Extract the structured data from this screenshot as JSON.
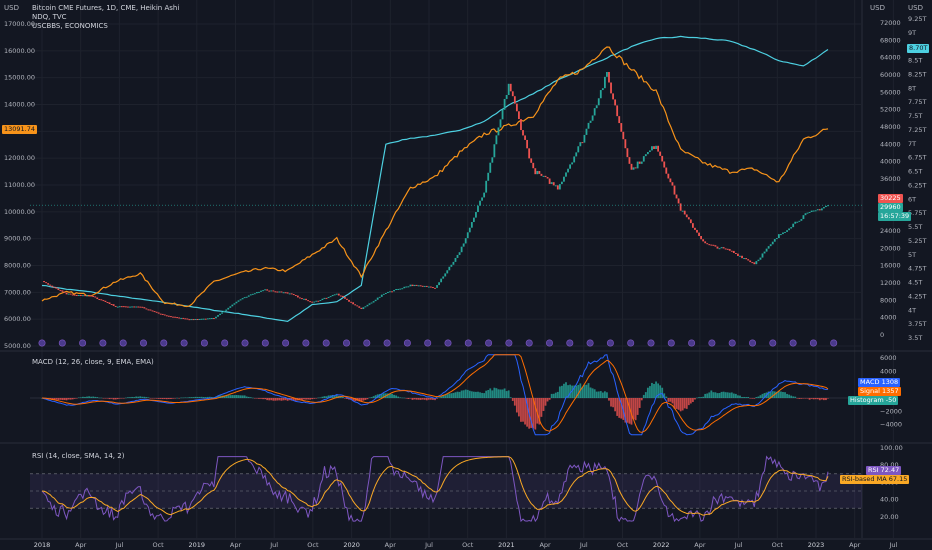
{
  "legend": {
    "main_title": "Bitcoin CME Futures, 1D, CME, Heikin Ashi",
    "series_2": "NDQ, TVC",
    "series_3": "USCBBS, ECONOMICS"
  },
  "colors": {
    "background": "#131722",
    "grid": "#1e222d",
    "btc_up": "#26a69a",
    "btc_down": "#ef5350",
    "ndq": "#f7931a",
    "uscbbs": "#4dd0e1",
    "macd": "#2962ff",
    "signal": "#ff6d00",
    "rsi": "#7e57c2",
    "rsi_ma": "#f9a825",
    "rsi_band": "#7e57c2"
  },
  "axes": {
    "left_unit": "USD",
    "right_unit": "USD",
    "left_ticks": [
      "17000.00",
      "16000.00",
      "15000.00",
      "14000.00",
      "13000.00",
      "12000.00",
      "11000.00",
      "10000.00",
      "9000.00",
      "8000.00",
      "7000.00",
      "6000.00",
      "5000.00"
    ],
    "right_ticks": [
      "72000",
      "68000",
      "64000",
      "60000",
      "56000",
      "52000",
      "48000",
      "44000",
      "40000",
      "36000",
      "32000",
      "28000",
      "24000",
      "20000",
      "16000",
      "12000",
      "8000",
      "4000",
      "0"
    ],
    "far_right_unit": "USD",
    "far_right_ticks": [
      "9.25T",
      "9T",
      "8.75T",
      "8.5T",
      "8.25T",
      "8T",
      "7.75T",
      "7.5T",
      "7.25T",
      "7T",
      "6.75T",
      "6.5T",
      "6.25T",
      "6T",
      "5.75T",
      "5.5T",
      "5.25T",
      "5T",
      "4.75T",
      "4.5T",
      "4.25T",
      "4T",
      "3.75T",
      "3.5T"
    ],
    "time_ticks": [
      "2018",
      "Apr",
      "Jul",
      "Oct",
      "2019",
      "Apr",
      "Jul",
      "Oct",
      "2020",
      "Apr",
      "Jul",
      "Oct",
      "2021",
      "Apr",
      "Jul",
      "Oct",
      "2022",
      "Apr",
      "Jul",
      "Oct",
      "2023",
      "Apr",
      "Jul"
    ]
  },
  "price_tags": {
    "ndq_left": "13091.74",
    "uscbbs": "8.70T",
    "btc_red": "30225",
    "btc_green": "29960",
    "btc_countdown": "16:57:39"
  },
  "macd_panel": {
    "title": "MACD (12, 26, close, 9, EMA, EMA)",
    "ticks": [
      "6000",
      "4000",
      "2000",
      "0",
      "−2000",
      "−4000"
    ],
    "tags": [
      {
        "label": "MACD",
        "value": "1308"
      },
      {
        "label": "Signal",
        "value": "1357"
      },
      {
        "label": "Histogram",
        "value": "-50"
      }
    ]
  },
  "rsi_panel": {
    "title": "RSI (14, close, SMA, 14, 2)",
    "ticks": [
      "100.00",
      "80.00",
      "60.00",
      "40.00",
      "20.00"
    ],
    "tags": [
      {
        "label": "RSI",
        "value": "72.47"
      },
      {
        "label": "RSI-based MA",
        "value": "67.15"
      }
    ],
    "upper_band": 70,
    "lower_band": 30
  },
  "chart_data": {
    "type": "line",
    "title": "Bitcoin CME Futures, 1D, CME, Heikin Ashi",
    "x": [
      "2018-01",
      "2018-03",
      "2018-05",
      "2018-07",
      "2018-09",
      "2018-11",
      "2019-01",
      "2019-03",
      "2019-05",
      "2019-07",
      "2019-09",
      "2019-11",
      "2020-01",
      "2020-03",
      "2020-05",
      "2020-07",
      "2020-09",
      "2020-11",
      "2021-01",
      "2021-03",
      "2021-05",
      "2021-07",
      "2021-09",
      "2021-11",
      "2022-01",
      "2022-03",
      "2022-05",
      "2022-07",
      "2022-09",
      "2022-11",
      "2023-01",
      "2023-03",
      "2023-04"
    ],
    "series": [
      {
        "name": "Bitcoin CME Futures, 1D, CME, Heikin Ashi",
        "axis": "right",
        "values": [
          12500,
          9500,
          9000,
          6600,
          6500,
          4500,
          3600,
          3900,
          8000,
          10500,
          9700,
          7500,
          9500,
          6000,
          9800,
          11500,
          11000,
          19000,
          33000,
          58000,
          38000,
          34000,
          45000,
          60000,
          38000,
          44000,
          29000,
          21000,
          19500,
          16500,
          23000,
          27500,
          29960
        ]
      },
      {
        "name": "NDQ, TVC",
        "axis": "left",
        "values": [
          6700,
          7000,
          6900,
          7400,
          7700,
          6600,
          6500,
          7400,
          7700,
          7900,
          7800,
          8400,
          9000,
          7600,
          9300,
          10900,
          11300,
          12200,
          12900,
          13200,
          13600,
          14900,
          15300,
          16200,
          15300,
          14500,
          12300,
          11800,
          11500,
          11600,
          11100,
          12700,
          13091.74
        ]
      },
      {
        "name": "USCBBS, ECONOMICS",
        "axis": "far_right",
        "values": [
          4.45,
          4.38,
          4.33,
          4.26,
          4.2,
          4.14,
          4.07,
          4.0,
          3.94,
          3.87,
          3.8,
          4.1,
          4.15,
          4.45,
          7.0,
          7.1,
          7.15,
          7.25,
          7.4,
          7.7,
          7.9,
          8.15,
          8.35,
          8.55,
          8.75,
          8.9,
          8.93,
          8.9,
          8.85,
          8.7,
          8.5,
          8.4,
          8.7
        ]
      }
    ],
    "macd": {
      "macd": 1308,
      "signal": 1357,
      "histogram": -50
    },
    "rsi": {
      "rsi": 72.47,
      "rsi_ma": 67.15
    }
  }
}
